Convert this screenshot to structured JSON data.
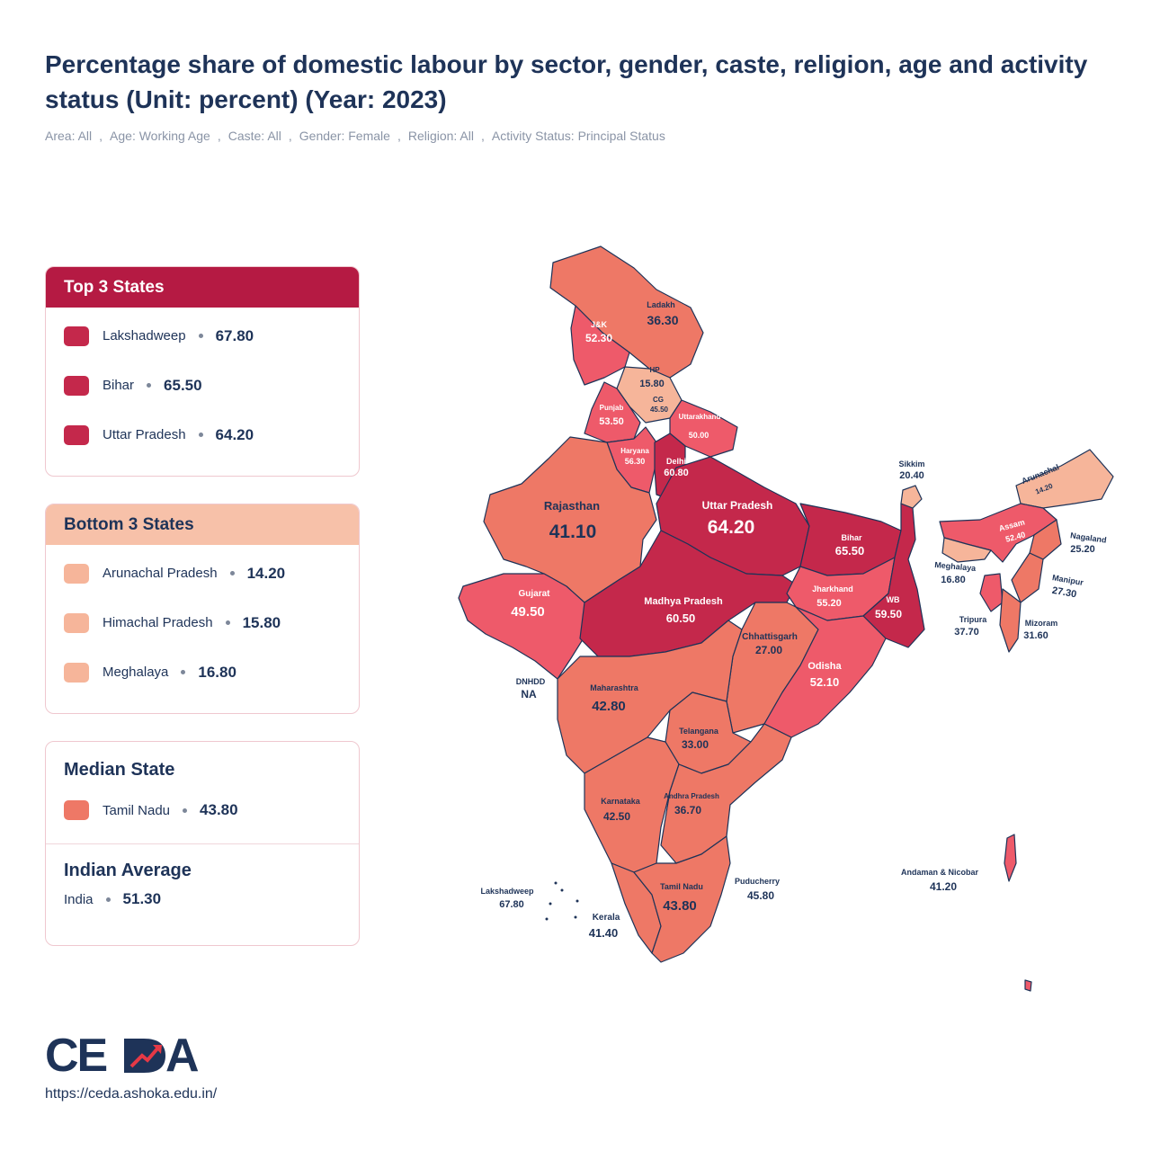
{
  "title": "Percentage share of domestic labour by sector, gender, caste, religion, age and activity status (Unit: percent) (Year: 2023)",
  "filters": [
    "Area: All",
    "Age: Working Age",
    "Caste: All",
    "Gender: Female",
    "Religion: All",
    "Activity Status: Principal Status"
  ],
  "filter_separator": ",",
  "top3": {
    "heading": "Top 3 States",
    "color": "#b51a43",
    "items": [
      {
        "name": "Lakshadweep",
        "value": "67.80",
        "color": "#c4284b"
      },
      {
        "name": "Bihar",
        "value": "65.50",
        "color": "#c4284b"
      },
      {
        "name": "Uttar Pradesh",
        "value": "64.20",
        "color": "#c4284b"
      }
    ]
  },
  "bottom3": {
    "heading": "Bottom 3 States",
    "color": "#f7c1a9",
    "items": [
      {
        "name": "Arunachal Pradesh",
        "value": "14.20",
        "color": "#f6b59a"
      },
      {
        "name": "Himachal Pradesh",
        "value": "15.80",
        "color": "#f6b59a"
      },
      {
        "name": "Meghalaya",
        "value": "16.80",
        "color": "#f6b59a"
      }
    ]
  },
  "median": {
    "heading": "Median State",
    "name": "Tamil Nadu",
    "value": "43.80",
    "color": "#ee7866"
  },
  "average": {
    "heading": "Indian Average",
    "name": "India",
    "value": "51.30"
  },
  "footer": {
    "brand": "CEDA",
    "url": "https://ceda.ashoka.edu.in/"
  },
  "colors": {
    "dark": "#c4284b",
    "mid": "#ee5a6a",
    "orange": "#ee7866",
    "light": "#f6b59a",
    "border": "#1e3358"
  },
  "map_labels": [
    {
      "id": "ladakh",
      "name": "Ladakh",
      "value": "36.30"
    },
    {
      "id": "jk",
      "name": "J&K",
      "value": "52.30"
    },
    {
      "id": "hp",
      "name": "HP",
      "value": "15.80"
    },
    {
      "id": "cg",
      "name": "CG",
      "value": "45.50"
    },
    {
      "id": "punjab",
      "name": "Punjab",
      "value": "53.50"
    },
    {
      "id": "uttarakhand",
      "name": "Uttarakhand",
      "value": "50.00"
    },
    {
      "id": "haryana",
      "name": "Haryana",
      "value": "56.30"
    },
    {
      "id": "delhi",
      "name": "Delhi",
      "value": "60.80"
    },
    {
      "id": "rajasthan",
      "name": "Rajasthan",
      "value": "41.10"
    },
    {
      "id": "up",
      "name": "Uttar Pradesh",
      "value": "64.20"
    },
    {
      "id": "bihar",
      "name": "Bihar",
      "value": "65.50"
    },
    {
      "id": "sikkim",
      "name": "Sikkim",
      "value": "20.40"
    },
    {
      "id": "arunachal",
      "name": "Arunachal",
      "value": "14.20"
    },
    {
      "id": "assam",
      "name": "Assam",
      "value": "52.40"
    },
    {
      "id": "nagaland",
      "name": "Nagaland",
      "value": "25.20"
    },
    {
      "id": "meghalaya",
      "name": "Meghalaya",
      "value": "16.80"
    },
    {
      "id": "manipur",
      "name": "Manipur",
      "value": "27.30"
    },
    {
      "id": "tripura",
      "name": "Tripura",
      "value": "37.70"
    },
    {
      "id": "mizoram",
      "name": "Mizoram",
      "value": "31.60"
    },
    {
      "id": "gujarat",
      "name": "Gujarat",
      "value": "49.50"
    },
    {
      "id": "mp",
      "name": "Madhya Pradesh",
      "value": "60.50"
    },
    {
      "id": "jharkhand",
      "name": "Jharkhand",
      "value": "55.20"
    },
    {
      "id": "wb",
      "name": "WB",
      "value": "59.50"
    },
    {
      "id": "chhattisgarh",
      "name": "Chhattisgarh",
      "value": "27.00"
    },
    {
      "id": "odisha",
      "name": "Odisha",
      "value": "52.10"
    },
    {
      "id": "dnhdd",
      "name": "DNHDD",
      "value": "NA"
    },
    {
      "id": "maharashtra",
      "name": "Maharashtra",
      "value": "42.80"
    },
    {
      "id": "telangana",
      "name": "Telangana",
      "value": "33.00"
    },
    {
      "id": "karnataka",
      "name": "Karnataka",
      "value": "42.50"
    },
    {
      "id": "ap",
      "name": "Andhra Pradesh",
      "value": "36.70"
    },
    {
      "id": "lakshadweep",
      "name": "Lakshadweep",
      "value": "67.80"
    },
    {
      "id": "puducherry",
      "name": "Puducherry",
      "value": "45.80"
    },
    {
      "id": "andaman",
      "name": "Andaman & Nicobar",
      "value": "41.20"
    },
    {
      "id": "tn",
      "name": "Tamil Nadu",
      "value": "43.80"
    },
    {
      "id": "kerala",
      "name": "Kerala",
      "value": "41.40"
    }
  ]
}
